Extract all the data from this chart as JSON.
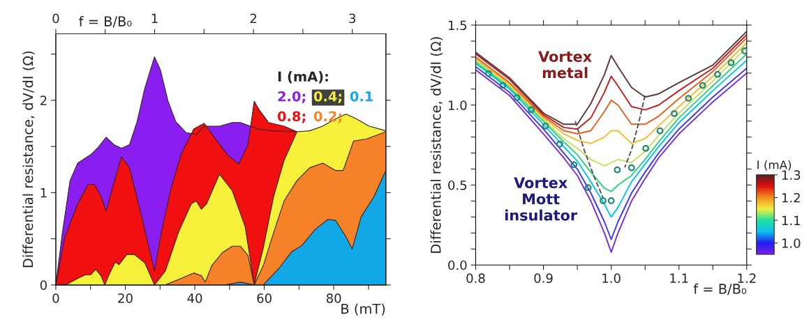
{
  "chart_data": [
    {
      "type": "area",
      "xlabel": "B (mT)",
      "x2label": "f = B/B₀",
      "ylabel": "Differential resistance, dV/dI (Ω)",
      "legend_title": "I (mA):",
      "legend": "top right",
      "grid": false,
      "xlim": [
        0,
        95
      ],
      "xticks": [
        0,
        {
          "value": 10,
          "label": null
        },
        20,
        {
          "value": 30,
          "label": null
        },
        40,
        {
          "value": 50,
          "label": null
        },
        60,
        {
          "value": 70,
          "label": null
        },
        80,
        {
          "value": 90,
          "label": null
        }
      ],
      "x2lim": [
        0,
        3.34
      ],
      "x2ticks": [
        0,
        {
          "value": 0.5,
          "label": null
        },
        1,
        {
          "value": 1.5,
          "label": null
        },
        2,
        {
          "value": 2.5,
          "label": null
        },
        3
      ],
      "ylim": [
        0,
        2.72
      ],
      "yticks": [
        0,
        {
          "value": 0.5,
          "label": null
        },
        1,
        {
          "value": 1.5,
          "label": null
        },
        2,
        {
          "value": 2.5,
          "label": null
        }
      ],
      "series": [
        {
          "name": "2.0;",
          "color": "#8a1ef0",
          "x": [
            0,
            1.9,
            4.1,
            6.3,
            10,
            12.2,
            14.5,
            16.7,
            18.9,
            21.2,
            23.4,
            25.6,
            28.4,
            30.1,
            32.3,
            34.5,
            37.5,
            40.4,
            42.7,
            47.1,
            50.8,
            53.1,
            56,
            58.3,
            62,
            69.4
          ],
          "values": [
            0,
            0.57,
            1.13,
            1.32,
            1.41,
            1.49,
            1.6,
            1.52,
            1.48,
            1.52,
            1.77,
            2.13,
            2.47,
            2.33,
            1.99,
            1.77,
            1.65,
            1.63,
            1.72,
            1.72,
            1.76,
            1.76,
            1.72,
            1.69,
            1.67,
            1.66
          ]
        },
        {
          "name": "0.8;",
          "color": "#f01010",
          "x": [
            0,
            2.6,
            6.3,
            9.3,
            11.1,
            13,
            14.5,
            16,
            18.9,
            21.2,
            24.9,
            28.4,
            30.1,
            33,
            36,
            39.7,
            42.7,
            45.6,
            49.4,
            52.7,
            55.3,
            57.1,
            58.3,
            61.2,
            65.7,
            69.4
          ],
          "values": [
            0,
            0.52,
            0.88,
            1.09,
            1.09,
            0.96,
            0.8,
            1.01,
            1.39,
            1.27,
            0.71,
            0.15,
            0.52,
            1.02,
            1.41,
            1.69,
            1.75,
            1.6,
            1.41,
            1.31,
            1.52,
            1.99,
            1.91,
            1.76,
            1.72,
            1.66
          ]
        },
        {
          "name": "0.4;",
          "color": "#f5f03a",
          "x": [
            0,
            3.3,
            6.3,
            8.5,
            10,
            11.5,
            13,
            14.1,
            15.2,
            17.1,
            18.2,
            20.4,
            22.6,
            25.6,
            28.4,
            31.5,
            35.3,
            39,
            40.4,
            41.9,
            43.4,
            47.1,
            50.8,
            54.5,
            57.1,
            59.7,
            62.7,
            65.7,
            69.4,
            73.1,
            76.8,
            80.5,
            83.5,
            86.5,
            90.2,
            95
          ],
          "values": [
            0,
            0.01,
            0.07,
            0.11,
            0.11,
            0.17,
            0.1,
            0,
            0.1,
            0.25,
            0.22,
            0.33,
            0.33,
            0.24,
            0,
            0.15,
            0.57,
            0.88,
            0.91,
            0.82,
            0.88,
            1.2,
            1.02,
            0.63,
            0,
            0.4,
            0.96,
            1.35,
            1.66,
            1.67,
            1.72,
            1.8,
            1.85,
            1.8,
            1.72,
            1.67
          ]
        },
        {
          "name": "0.2;",
          "color": "#f58228",
          "x": [
            31.5,
            36,
            39.7,
            41.9,
            43,
            44.9,
            47.9,
            50.8,
            53.1,
            55.3,
            57.1,
            59.7,
            62.7,
            65.7,
            69.4,
            73.1,
            76.8,
            80.5,
            82.7,
            85.7,
            89.4,
            95
          ],
          "values": [
            0,
            0.07,
            0.13,
            0.1,
            0.03,
            0.21,
            0.35,
            0.42,
            0.42,
            0.32,
            0,
            0.21,
            0.57,
            0.91,
            1.13,
            1.27,
            1.32,
            1.24,
            1.24,
            1.56,
            1.58,
            1.66
          ]
        },
        {
          "name": "0.1",
          "color": "#12a8e8",
          "x": [
            48.6,
            53.1,
            56,
            57.1,
            59.7,
            64.2,
            67.9,
            70.9,
            74.6,
            78.3,
            80.5,
            83.5,
            85.3,
            87.9,
            91.6,
            95
          ],
          "values": [
            0,
            0.03,
            0.01,
            0,
            0,
            0.18,
            0.36,
            0.43,
            0.6,
            0.71,
            0.7,
            0.52,
            0.39,
            0.74,
            0.96,
            1.24
          ]
        }
      ]
    },
    {
      "type": "line",
      "xlabel": "f = B/B₀",
      "ylabel": "Differential resistance, dV/dI (Ω)",
      "clabel": "I (mA)",
      "clim": [
        0.95,
        1.3
      ],
      "cticks": [
        {
          "value": 1.0,
          "label": "1.0"
        },
        1.1,
        1.2,
        1.3
      ],
      "grid": false,
      "annotations": [
        "Vortex\nmetal",
        "Vortex\nMott\ninsulator"
      ],
      "xlim": [
        0.8,
        1.2
      ],
      "xticks": [
        0.8,
        {
          "value": 0.85,
          "label": null
        },
        0.9,
        {
          "value": 0.95,
          "label": null
        },
        {
          "value": 1.0,
          "label": "1.0"
        },
        {
          "value": 1.05,
          "label": null
        },
        1.1,
        {
          "value": 1.15,
          "label": null
        },
        1.2
      ],
      "ylim": [
        0.0,
        1.5
      ],
      "yticks": [
        {
          "value": 0.0,
          "label": "0.0"
        },
        {
          "value": 0.1,
          "label": null
        },
        {
          "value": 0.2,
          "label": null
        },
        {
          "value": 0.3,
          "label": null
        },
        {
          "value": 0.4,
          "label": null
        },
        0.5,
        {
          "value": 0.6,
          "label": null
        },
        {
          "value": 0.7,
          "label": null
        },
        {
          "value": 0.8,
          "label": null
        },
        {
          "value": 0.9,
          "label": null
        },
        {
          "value": 1.0,
          "label": "1.0"
        },
        {
          "value": 1.1,
          "label": null
        },
        {
          "value": 1.2,
          "label": null
        },
        {
          "value": 1.3,
          "label": null
        },
        {
          "value": 1.4,
          "label": null
        },
        1.5
      ],
      "x": [
        0.8,
        0.85,
        0.9,
        0.93,
        0.95,
        0.97,
        0.99,
        1.0,
        1.01,
        1.03,
        1.05,
        1.07,
        1.1,
        1.15,
        1.2
      ],
      "series": [
        {
          "color": "#7a2ee0",
          "values": [
            1.22,
            1.06,
            0.82,
            0.67,
            0.56,
            0.4,
            0.2,
            0.08,
            0.2,
            0.4,
            0.54,
            0.67,
            0.82,
            1.02,
            1.2
          ]
        },
        {
          "color": "#3a3af0",
          "values": [
            1.24,
            1.08,
            0.85,
            0.7,
            0.6,
            0.45,
            0.27,
            0.16,
            0.27,
            0.45,
            0.58,
            0.7,
            0.85,
            1.05,
            1.23
          ]
        },
        {
          "color": "#00c8e8",
          "values": [
            1.26,
            1.1,
            0.88,
            0.74,
            0.65,
            0.52,
            0.38,
            0.3,
            0.36,
            0.52,
            0.63,
            0.74,
            0.89,
            1.09,
            1.28
          ]
        },
        {
          "color": "#30d080",
          "values": [
            1.27,
            1.11,
            0.9,
            0.77,
            0.69,
            0.58,
            0.48,
            0.46,
            0.5,
            0.56,
            0.66,
            0.77,
            0.92,
            1.12,
            1.32
          ]
        },
        {
          "color": "#c8e060",
          "values": [
            1.28,
            1.12,
            0.91,
            0.79,
            0.73,
            0.66,
            0.62,
            0.64,
            0.66,
            0.64,
            0.71,
            0.81,
            0.95,
            1.15,
            1.36
          ]
        },
        {
          "color": "#f0c030",
          "values": [
            1.29,
            1.13,
            0.92,
            0.82,
            0.78,
            0.76,
            0.8,
            0.84,
            0.84,
            0.76,
            0.79,
            0.87,
            0.99,
            1.18,
            1.39
          ]
        },
        {
          "color": "#e86020",
          "values": [
            1.3,
            1.14,
            0.93,
            0.84,
            0.82,
            0.84,
            0.96,
            1.03,
            1.0,
            0.88,
            0.88,
            0.93,
            1.04,
            1.21,
            1.42
          ]
        },
        {
          "color": "#c02020",
          "values": [
            1.32,
            1.16,
            0.94,
            0.86,
            0.85,
            0.92,
            1.08,
            1.18,
            1.12,
            0.99,
            0.97,
            1.0,
            1.09,
            1.23,
            1.44
          ]
        },
        {
          "color": "#5a3a3a",
          "values": [
            1.33,
            1.17,
            0.95,
            0.88,
            0.88,
            1.01,
            1.19,
            1.31,
            1.24,
            1.11,
            1.05,
            1.07,
            1.14,
            1.25,
            1.46
          ]
        },
        {
          "type": "line",
          "line_style": "dashed",
          "color": "#555555",
          "x": [
            0.947,
            0.96,
            0.975,
            0.988
          ],
          "values": [
            0.9,
            0.72,
            0.55,
            0.42
          ]
        },
        {
          "type": "line",
          "line_style": "dashed",
          "color": "#555555",
          "x": [
            1.05,
            1.04,
            1.03,
            1.02
          ],
          "values": [
            1.06,
            0.88,
            0.72,
            0.61
          ]
        },
        {
          "type": "scatter",
          "marker": "circle",
          "color": "#1f8a78",
          "x": [
            0.819,
            0.84,
            0.861,
            0.882,
            0.903,
            0.924,
            0.945,
            0.966,
            0.988,
            1.0,
            1.009,
            1.03,
            1.051,
            1.072,
            1.093,
            1.114,
            1.135,
            1.157,
            1.177,
            1.197
          ],
          "values": [
            1.197,
            1.124,
            1.047,
            0.971,
            0.869,
            0.756,
            0.627,
            0.484,
            0.402,
            0.402,
            0.595,
            0.608,
            0.729,
            0.839,
            0.947,
            1.042,
            1.123,
            1.192,
            1.265,
            1.339
          ]
        }
      ]
    }
  ]
}
